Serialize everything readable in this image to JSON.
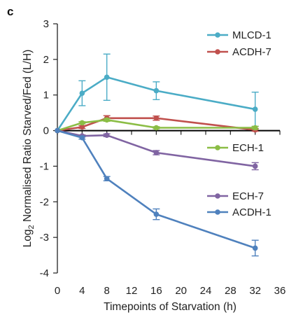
{
  "panel_label": "c",
  "chart_data": {
    "type": "line",
    "xlabel": "Timepoints of Starvation (h)",
    "ylabel_parts": {
      "base": "Log",
      "subscript": "2",
      "rest": " Normalised Ratio Starved/Fed (L/H)"
    },
    "xlim": [
      0,
      36
    ],
    "ylim": [
      -4,
      3
    ],
    "xticks": [
      0,
      4,
      8,
      12,
      16,
      20,
      24,
      28,
      32,
      36
    ],
    "yticks": [
      -4,
      -3,
      -2,
      -1,
      0,
      1,
      2,
      3
    ],
    "grid": false,
    "x": [
      0,
      4,
      8,
      16,
      32
    ],
    "series": [
      {
        "name": "MLCD-1",
        "color": "#4bacc6",
        "values": [
          0,
          1.05,
          1.5,
          1.12,
          0.6
        ],
        "errors": [
          0,
          0.35,
          0.65,
          0.25,
          0.48
        ]
      },
      {
        "name": "ACDH-7",
        "color": "#c0504d",
        "values": [
          0,
          0.1,
          0.35,
          0.35,
          0.02
        ],
        "errors": [
          0,
          0.04,
          0.07,
          0.06,
          0.04
        ]
      },
      {
        "name": "ECH-1",
        "color": "#8bbd45",
        "values": [
          0,
          0.22,
          0.3,
          0.08,
          0.08
        ],
        "errors": [
          0,
          0.03,
          0.04,
          0.03,
          0.04
        ]
      },
      {
        "name": "ECH-7",
        "color": "#8064a2",
        "values": [
          0,
          -0.15,
          -0.13,
          -0.62,
          -1.0
        ],
        "errors": [
          0,
          0.03,
          0.04,
          0.06,
          0.1
        ]
      },
      {
        "name": "ACDH-1",
        "color": "#4f81bd",
        "values": [
          0,
          -0.2,
          -1.35,
          -2.35,
          -3.3
        ],
        "errors": [
          0,
          0.04,
          0.06,
          0.15,
          0.22
        ]
      }
    ],
    "legend": {
      "groups": [
        {
          "placement": "top-right",
          "entries": [
            "MLCD-1",
            "ACDH-7"
          ]
        },
        {
          "placement": "right-middle",
          "entries": [
            "ECH-1"
          ]
        },
        {
          "placement": "right-lower",
          "entries": [
            "ECH-7",
            "ACDH-1"
          ]
        }
      ]
    }
  }
}
